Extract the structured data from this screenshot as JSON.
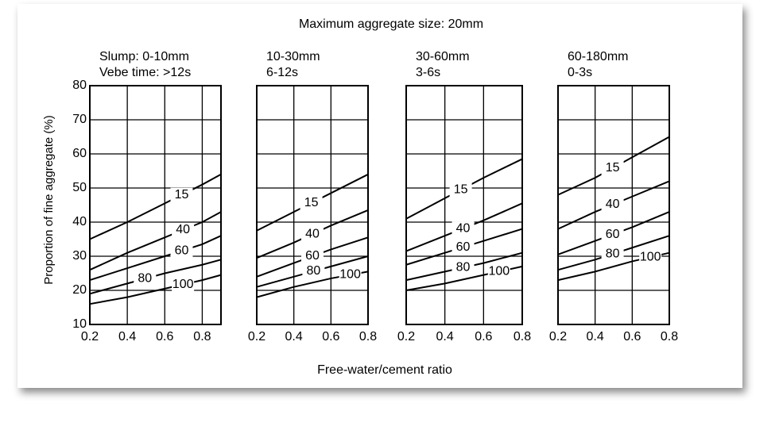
{
  "title": "Maximum aggregate size: 20mm",
  "xlabel": "Free-water/cement ratio",
  "ylabel": "Proportion of fine aggregate (%)",
  "chart_data": [
    {
      "type": "line",
      "slump": "Slump: 0-10mm",
      "vebe": "Vebe time: >12s",
      "x": [
        0.2,
        0.4,
        0.6,
        0.8,
        0.9
      ],
      "xlim": [
        0.2,
        0.9
      ],
      "xticks": [
        0.2,
        0.4,
        0.6,
        0.8
      ],
      "ylim": [
        10,
        80
      ],
      "yticks": [
        10,
        20,
        30,
        40,
        50,
        60,
        70,
        80
      ],
      "ytick_labels": true,
      "grid": true,
      "series": [
        {
          "name": "15",
          "color": "#000000",
          "values": [
            35,
            40,
            45.5,
            51,
            54
          ]
        },
        {
          "name": "40",
          "color": "#000000",
          "values": [
            26,
            31,
            35.5,
            40,
            43
          ]
        },
        {
          "name": "60",
          "color": "#000000",
          "values": [
            23,
            26.5,
            30,
            33.5,
            36
          ]
        },
        {
          "name": "80",
          "color": "#000000",
          "values": [
            19,
            22,
            25,
            27.5,
            29
          ]
        },
        {
          "name": "100",
          "color": "#000000",
          "values": [
            16,
            18,
            20.5,
            23,
            24.5
          ]
        }
      ]
    },
    {
      "type": "line",
      "slump": "10-30mm",
      "vebe": "6-12s",
      "x": [
        0.2,
        0.4,
        0.6,
        0.8
      ],
      "xlim": [
        0.2,
        0.8
      ],
      "xticks": [
        0.2,
        0.4,
        0.6,
        0.8
      ],
      "ylim": [
        10,
        80
      ],
      "yticks": [
        10,
        20,
        30,
        40,
        50,
        60,
        70,
        80
      ],
      "ytick_labels": false,
      "grid": true,
      "series": [
        {
          "name": "15",
          "color": "#000000",
          "values": [
            37.5,
            43,
            48.5,
            54
          ]
        },
        {
          "name": "40",
          "color": "#000000",
          "values": [
            29.5,
            34,
            39,
            43.5
          ]
        },
        {
          "name": "60",
          "color": "#000000",
          "values": [
            24,
            28,
            32,
            35.5
          ]
        },
        {
          "name": "80",
          "color": "#000000",
          "values": [
            21,
            24,
            27,
            30
          ]
        },
        {
          "name": "100",
          "color": "#000000",
          "values": [
            18,
            21,
            23.5,
            25.5
          ]
        }
      ]
    },
    {
      "type": "line",
      "slump": "30-60mm",
      "vebe": "3-6s",
      "x": [
        0.2,
        0.4,
        0.6,
        0.8
      ],
      "xlim": [
        0.2,
        0.8
      ],
      "xticks": [
        0.2,
        0.4,
        0.6,
        0.8
      ],
      "ylim": [
        10,
        80
      ],
      "yticks": [
        10,
        20,
        30,
        40,
        50,
        60,
        70,
        80
      ],
      "ytick_labels": false,
      "grid": true,
      "series": [
        {
          "name": "15",
          "color": "#000000",
          "values": [
            41,
            47,
            53,
            58.5
          ]
        },
        {
          "name": "40",
          "color": "#000000",
          "values": [
            31.5,
            36,
            40.5,
            45.5
          ]
        },
        {
          "name": "60",
          "color": "#000000",
          "values": [
            27.5,
            31,
            34.5,
            38
          ]
        },
        {
          "name": "80",
          "color": "#000000",
          "values": [
            23,
            25.5,
            28,
            31
          ]
        },
        {
          "name": "100",
          "color": "#000000",
          "values": [
            20,
            22,
            24.5,
            27
          ]
        }
      ]
    },
    {
      "type": "line",
      "slump": "60-180mm",
      "vebe": "0-3s",
      "x": [
        0.2,
        0.4,
        0.6,
        0.8
      ],
      "xlim": [
        0.2,
        0.8
      ],
      "xticks": [
        0.2,
        0.4,
        0.6,
        0.8
      ],
      "ylim": [
        10,
        80
      ],
      "yticks": [
        10,
        20,
        30,
        40,
        50,
        60,
        70,
        80
      ],
      "ytick_labels": false,
      "grid": true,
      "series": [
        {
          "name": "15",
          "color": "#000000",
          "values": [
            48,
            53,
            59,
            65
          ]
        },
        {
          "name": "40",
          "color": "#000000",
          "values": [
            38,
            43,
            47.5,
            52
          ]
        },
        {
          "name": "60",
          "color": "#000000",
          "values": [
            30.5,
            34.5,
            38.5,
            43
          ]
        },
        {
          "name": "80",
          "color": "#000000",
          "values": [
            26,
            29,
            32.5,
            36
          ]
        },
        {
          "name": "100",
          "color": "#000000",
          "values": [
            23,
            25.5,
            28.5,
            31
          ]
        }
      ]
    }
  ]
}
